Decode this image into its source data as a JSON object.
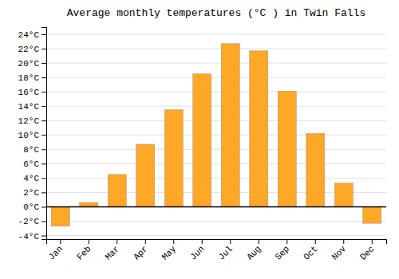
{
  "chart_data": {
    "type": "bar",
    "title": "Average monthly temperatures (°C ) in Twin Falls",
    "categories": [
      "Jan",
      "Feb",
      "Mar",
      "Apr",
      "May",
      "Jun",
      "Jul",
      "Aug",
      "Sep",
      "Oct",
      "Nov",
      "Dec"
    ],
    "values": [
      -2.7,
      0.6,
      4.5,
      8.7,
      13.5,
      18.5,
      22.7,
      21.7,
      16.1,
      10.2,
      3.3,
      -2.3
    ],
    "color": "#FFA726",
    "ylim": [
      -4.5,
      25
    ],
    "yticks": [
      {
        "value": -4,
        "label": "-4°C"
      },
      {
        "value": -2,
        "label": "-2°C"
      },
      {
        "value": 0,
        "label": "0°C"
      },
      {
        "value": 2,
        "label": "2°C"
      },
      {
        "value": 4,
        "label": "4°C"
      },
      {
        "value": 6,
        "label": "6°C"
      },
      {
        "value": 8,
        "label": "8°C"
      },
      {
        "value": 10,
        "label": "10°C"
      },
      {
        "value": 12,
        "label": "12°C"
      },
      {
        "value": 14,
        "label": "14°C"
      },
      {
        "value": 16,
        "label": "16°C"
      },
      {
        "value": 18,
        "label": "18°C"
      },
      {
        "value": 20,
        "label": "20°C"
      },
      {
        "value": 22,
        "label": "22°C"
      },
      {
        "value": 24,
        "label": "24°C"
      }
    ],
    "grid": true
  }
}
